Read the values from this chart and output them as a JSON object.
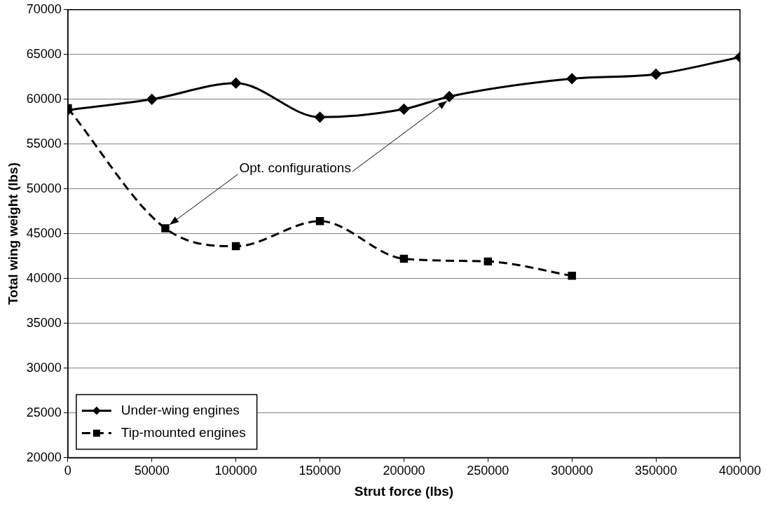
{
  "chart_data": {
    "type": "line",
    "xlabel": "Strut force (lbs)",
    "ylabel": "Total wing weight (lbs)",
    "xlim": [
      0,
      400000
    ],
    "xticks": [
      0,
      50000,
      100000,
      150000,
      200000,
      250000,
      300000,
      350000,
      400000
    ],
    "ylim": [
      20000,
      70000
    ],
    "yticks": [
      20000,
      25000,
      30000,
      35000,
      40000,
      45000,
      50000,
      55000,
      60000,
      65000,
      70000
    ],
    "grid": "y",
    "legend": "bottom left",
    "annotations": [
      {
        "text": "Opt. configurations",
        "x": 58000,
        "y": 45600
      }
    ],
    "series": [
      {
        "name": "Under-wing engines",
        "color": "#000000",
        "marker": "diamond",
        "line_style": "solid",
        "x": [
          0,
          50000,
          100000,
          150000,
          200000,
          227000,
          300000,
          350000,
          400000
        ],
        "values": [
          58800,
          60000,
          61800,
          58000,
          58900,
          60300,
          62300,
          62800,
          64700
        ]
      },
      {
        "name": "Tip-mounted engines",
        "color": "#000000",
        "marker": "square",
        "line_style": "dashed",
        "x": [
          0,
          58000,
          100000,
          150000,
          200000,
          250000,
          300000
        ],
        "values": [
          59000,
          45600,
          43600,
          46400,
          42200,
          41900,
          40300
        ]
      }
    ]
  }
}
